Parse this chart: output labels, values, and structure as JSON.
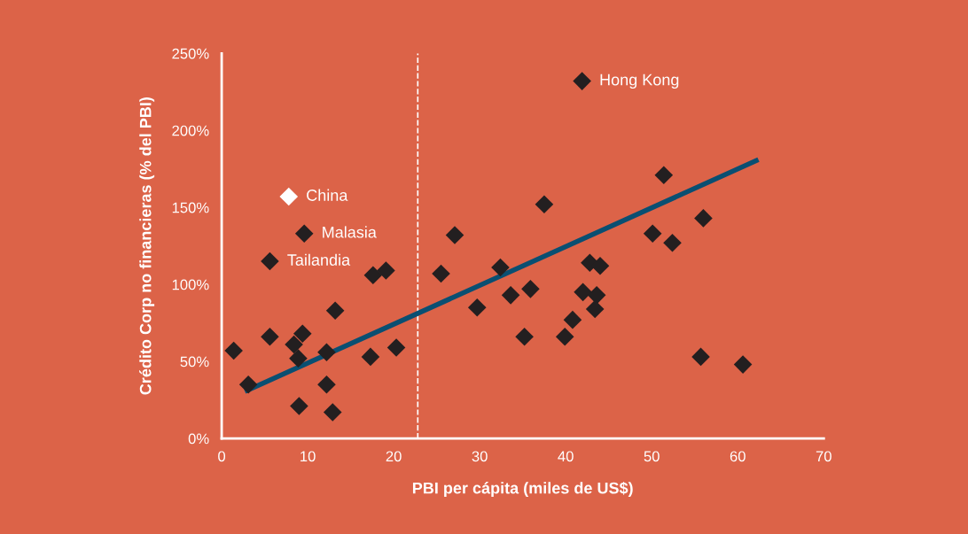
{
  "chart_data": {
    "type": "scatter",
    "xlabel": "PBI per cápita (miles de US$)",
    "ylabel": "Crédito Corp no financieras (% del PBI)",
    "xlim": [
      0,
      70
    ],
    "xticks": [
      0,
      10,
      20,
      30,
      40,
      50,
      60,
      70
    ],
    "ylim": [
      0,
      250
    ],
    "yticks": [
      {
        "value": 0,
        "label": "0%"
      },
      {
        "value": 50,
        "label": "50%"
      },
      {
        "value": 100,
        "label": "100%"
      },
      {
        "value": 150,
        "label": "150%"
      },
      {
        "value": 200,
        "label": "200%"
      },
      {
        "value": 250,
        "label": "250%"
      }
    ],
    "grid": false,
    "marker": "diamond",
    "series": [
      {
        "color": "#231f20",
        "x": [
          9.6,
          5.6,
          1.4,
          3.1,
          5.6,
          8.4,
          9.4,
          8.9,
          12.2,
          9.0,
          12.2,
          12.9,
          13.2,
          17.6,
          19.1,
          17.3,
          20.3,
          25.5,
          27.1,
          29.7,
          32.4,
          33.6,
          35.9,
          35.2,
          37.5,
          39.9,
          40.8,
          42.0,
          43.6,
          43.4,
          42.8,
          44.0,
          41.9,
          51.4,
          50.1,
          52.4,
          56.0,
          55.7,
          60.6
        ],
        "values": [
          133,
          115,
          57,
          35,
          66,
          61,
          68,
          52,
          56,
          21,
          35,
          17,
          83,
          106,
          109,
          53,
          59,
          107,
          132,
          85,
          111,
          93,
          97,
          66,
          152,
          66,
          77,
          95,
          93,
          84,
          114,
          112,
          232,
          171,
          133,
          127,
          143,
          53,
          48
        ]
      },
      {
        "color": "#ffffff",
        "x": [
          7.8
        ],
        "values": [
          157
        ]
      },
      {
        "type": "line",
        "color": "#0a4f72",
        "marker": "none",
        "x": [
          2.7,
          62.4
        ],
        "values": [
          30.5,
          181
        ]
      }
    ],
    "ref_lines": [
      {
        "axis": "x",
        "value": 22.8,
        "color": "#ffffff",
        "line_style": "dashed"
      }
    ],
    "annotations": [
      {
        "text": "China",
        "x": 7.8,
        "y": 157
      },
      {
        "text": "Malasia",
        "x": 9.6,
        "y": 133
      },
      {
        "text": "Tailandia",
        "x": 5.6,
        "y": 115
      },
      {
        "text": "Hong Kong",
        "x": 41.9,
        "y": 232
      }
    ]
  }
}
